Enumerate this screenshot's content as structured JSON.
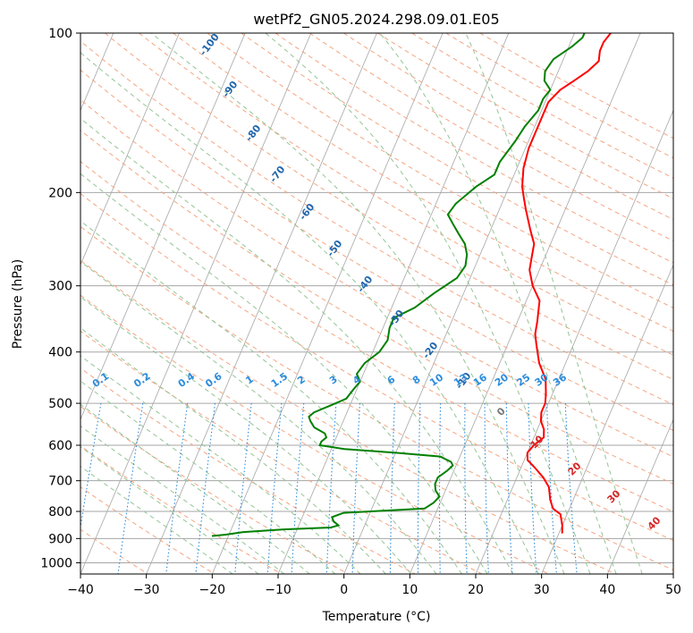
{
  "chart_data": {
    "type": "line",
    "title": "wetPf2_GN05.2024.298.09.01.E05",
    "xlabel": "Temperature (°C)",
    "ylabel": "Pressure (hPa)",
    "xlim": [
      -40,
      50
    ],
    "ylim": [
      1050,
      100
    ],
    "y_scale": "log",
    "grid": true,
    "xticks": [
      -40,
      -30,
      -20,
      -10,
      0,
      10,
      20,
      30,
      40,
      50
    ],
    "yticks": [
      100,
      200,
      300,
      400,
      500,
      600,
      700,
      800,
      900,
      1000
    ],
    "series": [
      {
        "color": "#ff0000",
        "points": [
          [
            30.5,
            880
          ],
          [
            30.0,
            850
          ],
          [
            29.5,
            830
          ],
          [
            29.0,
            810
          ],
          [
            27.5,
            790
          ],
          [
            26.5,
            760
          ],
          [
            25.5,
            720
          ],
          [
            24.0,
            690
          ],
          [
            22.0,
            660
          ],
          [
            20.5,
            640
          ],
          [
            20.0,
            620
          ],
          [
            20.5,
            600
          ],
          [
            21.5,
            580
          ],
          [
            21.0,
            560
          ],
          [
            20.0,
            540
          ],
          [
            19.5,
            520
          ],
          [
            19.5,
            500
          ],
          [
            19.0,
            480
          ],
          [
            18.0,
            450
          ],
          [
            16.0,
            420
          ],
          [
            14.5,
            390
          ],
          [
            13.5,
            370
          ],
          [
            13.0,
            350
          ],
          [
            12.0,
            320
          ],
          [
            10.0,
            300
          ],
          [
            8.5,
            280
          ],
          [
            8.0,
            265
          ],
          [
            7.5,
            250
          ],
          [
            6.0,
            235
          ],
          [
            4.0,
            215
          ],
          [
            3.0,
            205
          ],
          [
            2.0,
            195
          ],
          [
            1.0,
            180
          ],
          [
            0.5,
            165
          ],
          [
            0.5,
            145
          ],
          [
            0.5,
            135
          ],
          [
            1.5,
            128
          ],
          [
            3.0,
            123
          ],
          [
            4.5,
            118
          ],
          [
            5.5,
            113
          ],
          [
            5.0,
            108
          ],
          [
            5.0,
            104
          ],
          [
            5.5,
            100
          ]
        ]
      },
      {
        "color": "#008000",
        "points": [
          [
            -22.5,
            890
          ],
          [
            -20.5,
            885
          ],
          [
            -18.0,
            875
          ],
          [
            -12.0,
            865
          ],
          [
            -5.0,
            858
          ],
          [
            -4.0,
            850
          ],
          [
            -5.0,
            835
          ],
          [
            -5.5,
            820
          ],
          [
            -4.0,
            805
          ],
          [
            0.0,
            800
          ],
          [
            8.0,
            790
          ],
          [
            9.0,
            770
          ],
          [
            9.5,
            750
          ],
          [
            8.5,
            730
          ],
          [
            8.0,
            710
          ],
          [
            8.0,
            690
          ],
          [
            9.0,
            670
          ],
          [
            9.5,
            655
          ],
          [
            9.0,
            645
          ],
          [
            7.0,
            630
          ],
          [
            0.0,
            620
          ],
          [
            -8.0,
            610
          ],
          [
            -12.0,
            600
          ],
          [
            -12.0,
            590
          ],
          [
            -11.5,
            580
          ],
          [
            -12.0,
            570
          ],
          [
            -14.0,
            555
          ],
          [
            -15.0,
            540
          ],
          [
            -15.5,
            530
          ],
          [
            -15.0,
            520
          ],
          [
            -13.0,
            505
          ],
          [
            -11.0,
            490
          ],
          [
            -10.5,
            470
          ],
          [
            -10.0,
            455
          ],
          [
            -11.0,
            440
          ],
          [
            -10.5,
            420
          ],
          [
            -9.0,
            400
          ],
          [
            -8.5,
            380
          ],
          [
            -9.0,
            360
          ],
          [
            -9.0,
            345
          ],
          [
            -6.5,
            330
          ],
          [
            -4.5,
            310
          ],
          [
            -2.0,
            290
          ],
          [
            -1.5,
            275
          ],
          [
            -2.0,
            262
          ],
          [
            -3.0,
            250
          ],
          [
            -4.5,
            240
          ],
          [
            -6.0,
            230
          ],
          [
            -7.5,
            220
          ],
          [
            -7.0,
            210
          ],
          [
            -5.0,
            195
          ],
          [
            -3.0,
            185
          ],
          [
            -3.0,
            175
          ],
          [
            -2.0,
            160
          ],
          [
            -1.5,
            150
          ],
          [
            -0.5,
            140
          ],
          [
            -0.5,
            133
          ],
          [
            0.0,
            128
          ],
          [
            -1.5,
            123
          ],
          [
            -2.0,
            118
          ],
          [
            -1.5,
            112
          ],
          [
            0.5,
            106
          ],
          [
            1.5,
            102
          ],
          [
            1.5,
            100
          ]
        ]
      }
    ],
    "dry_adiabat_labels": [
      "-100",
      "-90",
      "-80",
      "-70",
      "-60",
      "-50",
      "-40",
      "-30",
      "-20",
      "-10"
    ],
    "moist_adiabat_labels": [
      "0",
      "10",
      "20",
      "30",
      "40"
    ],
    "mixing_ratio_labels": [
      "0.1",
      "0.2",
      "0.4",
      "0.6",
      "1",
      "1.5",
      "2",
      "3",
      "4",
      "6",
      "8",
      "10",
      "13",
      "16",
      "20",
      "25",
      "30",
      "36"
    ],
    "colors": {
      "temperature": "#ff0000",
      "dewpoint": "#008000",
      "isotherm": "#a6a6a6",
      "dry_adiabat": "#f4a582",
      "moist_adiabat": "#93c595",
      "mixing_ratio": "#2b8cdc",
      "dry_label": "#2166ac",
      "moist_label": "#d62728",
      "mixing_label": "#2b8cdc"
    }
  }
}
